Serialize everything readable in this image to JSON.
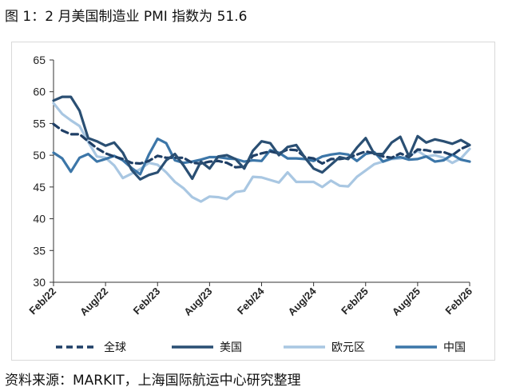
{
  "title": "图 1：2 月美国制造业 PMI 指数为 51.6",
  "source": "资料来源：MARKIT，上海国际航运中心研究整理",
  "chart_data": {
    "type": "line",
    "ylim": [
      30,
      65
    ],
    "yticks": [
      30,
      35,
      40,
      45,
      50,
      55,
      60,
      65
    ],
    "xtick_labels": [
      "Feb/22",
      "Aug/22",
      "Feb/23",
      "Aug/23",
      "Feb/24",
      "Aug/24",
      "Feb/25",
      "Aug/25",
      "Feb/26"
    ],
    "grid": false,
    "legend_position": "bottom",
    "x": [
      "2022-02",
      "2022-03",
      "2022-04",
      "2022-05",
      "2022-06",
      "2022-07",
      "2022-08",
      "2022-09",
      "2022-10",
      "2022-11",
      "2022-12",
      "2023-01",
      "2023-02",
      "2023-03",
      "2023-04",
      "2023-05",
      "2023-06",
      "2023-07",
      "2023-08",
      "2023-09",
      "2023-10",
      "2023-11",
      "2023-12",
      "2024-01",
      "2024-02",
      "2024-03",
      "2024-04",
      "2024-05",
      "2024-06",
      "2024-07",
      "2024-08",
      "2024-09",
      "2024-10",
      "2024-11",
      "2024-12",
      "2025-01",
      "2025-02",
      "2025-03",
      "2025-04",
      "2025-05",
      "2025-06",
      "2025-07",
      "2025-08",
      "2025-09",
      "2025-10",
      "2025-11",
      "2025-12",
      "2026-01",
      "2026-02"
    ],
    "series": [
      {
        "name": "全球",
        "color": "#1f3f66",
        "dash": "8,5",
        "width": 3.2,
        "values": [
          54.9,
          53.9,
          53.3,
          53.3,
          52.2,
          51.1,
          50.3,
          49.8,
          49.4,
          48.8,
          48.7,
          49.1,
          49.9,
          49.6,
          49.6,
          49.6,
          48.8,
          48.7,
          49.0,
          49.1,
          48.8,
          48.1,
          48.2,
          49.9,
          50.3,
          50.6,
          50.3,
          50.9,
          50.8,
          49.7,
          49.5,
          48.7,
          49.4,
          49.4,
          49.6,
          50.1,
          50.6,
          50.3,
          49.8,
          49.6,
          50.3,
          49.7,
          50.9,
          50.8,
          50.5,
          50.5,
          50.0,
          51.0,
          51.6
        ]
      },
      {
        "name": "美国",
        "color": "#2a4f73",
        "dash": "",
        "width": 3.2,
        "values": [
          58.6,
          59.2,
          59.2,
          57.0,
          52.7,
          52.2,
          51.5,
          52.0,
          50.4,
          47.7,
          46.2,
          46.9,
          47.3,
          49.2,
          50.2,
          48.4,
          46.3,
          49.0,
          47.9,
          49.8,
          50.0,
          49.4,
          47.9,
          50.7,
          52.2,
          51.9,
          50.0,
          51.3,
          51.6,
          49.6,
          47.9,
          47.3,
          48.5,
          49.7,
          49.4,
          51.2,
          52.7,
          50.2,
          50.2,
          52.0,
          52.9,
          49.8,
          53.0,
          52.0,
          52.5,
          52.2,
          51.8,
          52.4,
          51.6
        ]
      },
      {
        "name": "欧元区",
        "color": "#a9c7e2",
        "dash": "",
        "width": 3.2,
        "values": [
          58.2,
          56.5,
          55.5,
          54.6,
          52.1,
          49.8,
          49.6,
          48.4,
          46.4,
          47.1,
          47.8,
          48.8,
          48.5,
          47.3,
          45.8,
          44.8,
          43.4,
          42.7,
          43.5,
          43.4,
          43.1,
          44.2,
          44.4,
          46.6,
          46.5,
          46.1,
          45.7,
          47.3,
          45.8,
          45.8,
          45.8,
          45.0,
          46.0,
          45.2,
          45.1,
          46.6,
          47.6,
          48.6,
          49.0,
          49.4,
          49.5,
          49.8,
          50.7,
          49.8,
          50.0,
          49.6,
          48.8,
          49.5,
          51.0
        ]
      },
      {
        "name": "中国",
        "color": "#3c76a8",
        "dash": "",
        "width": 3.2,
        "values": [
          50.4,
          49.5,
          47.4,
          49.6,
          50.2,
          49.0,
          49.4,
          49.9,
          49.2,
          48.0,
          47.0,
          50.1,
          52.6,
          51.9,
          49.2,
          48.8,
          49.0,
          49.3,
          49.7,
          49.7,
          49.5,
          49.4,
          49.0,
          49.2,
          49.1,
          50.8,
          50.4,
          49.5,
          49.5,
          49.4,
          49.1,
          49.8,
          50.1,
          50.3,
          50.1,
          49.1,
          50.2,
          50.5,
          49.0,
          49.5,
          49.7,
          49.3,
          49.4,
          49.8,
          49.0,
          49.2,
          50.1,
          49.3,
          49.0
        ]
      }
    ]
  }
}
